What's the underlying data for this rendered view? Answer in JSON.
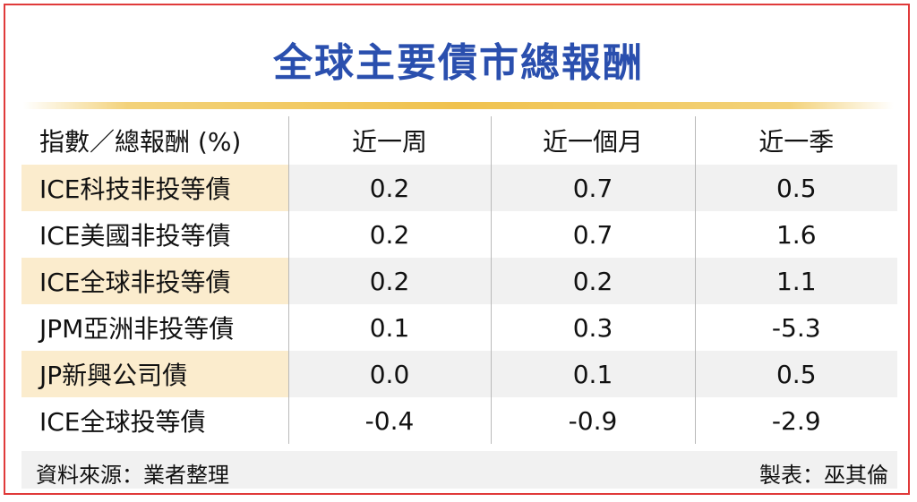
{
  "chart_data": {
    "type": "table",
    "title": "全球主要債市總報酬",
    "columns": [
      "指數／總報酬 (%)",
      "近一周",
      "近一個月",
      "近一季"
    ],
    "rows": [
      {
        "label": "ICE科技非投等債",
        "values": [
          "0.2",
          "0.7",
          "0.5"
        ]
      },
      {
        "label": "ICE美國非投等債",
        "values": [
          "0.2",
          "0.7",
          "1.6"
        ]
      },
      {
        "label": "ICE全球非投等債",
        "values": [
          "0.2",
          "0.2",
          "1.1"
        ]
      },
      {
        "label": "JPM亞洲非投等債",
        "values": [
          "0.1",
          "0.3",
          "-5.3"
        ]
      },
      {
        "label": "JP新興公司債",
        "values": [
          "0.0",
          "0.1",
          "0.5"
        ]
      },
      {
        "label": "ICE全球投等債",
        "values": [
          "-0.4",
          "-0.9",
          "-2.9"
        ]
      }
    ]
  },
  "footer": {
    "source": "資料來源：業者整理",
    "credit": "製表：巫其倫"
  },
  "colors": {
    "title": "#2a4fae",
    "border": "#e03a3a",
    "rule": "#f0c24e",
    "label_shade": "#fbeccd",
    "row_shade": "#f1f1f1"
  }
}
